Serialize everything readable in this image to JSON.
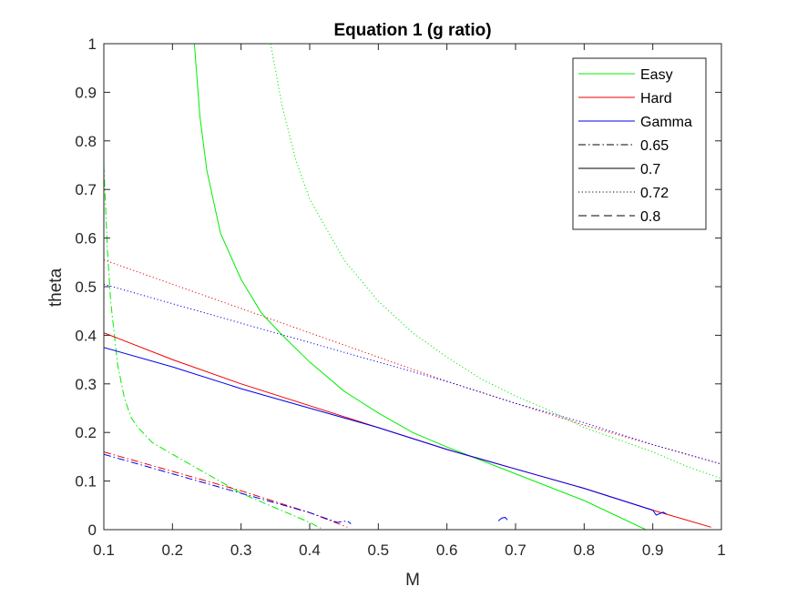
{
  "chart_data": {
    "type": "line",
    "title": "Equation 1 (g ratio)",
    "xlabel": "M",
    "ylabel": "theta",
    "xlim": [
      0.1,
      1
    ],
    "ylim": [
      0,
      1
    ],
    "xticks": [
      "0.1",
      "0.2",
      "0.3",
      "0.4",
      "0.5",
      "0.6",
      "0.7",
      "0.8",
      "0.9",
      "1"
    ],
    "yticks": [
      "0",
      "0.1",
      "0.2",
      "0.3",
      "0.4",
      "0.5",
      "0.6",
      "0.7",
      "0.8",
      "0.9",
      "1"
    ],
    "grid": false,
    "legend_position": "top-right",
    "legend": [
      {
        "label": "Easy",
        "color": "#00ee00",
        "style": "solid"
      },
      {
        "label": "Hard",
        "color": "#ee0000",
        "style": "solid"
      },
      {
        "label": "Gamma",
        "color": "#0000ee",
        "style": "solid"
      },
      {
        "label": "0.65",
        "color": "#000000",
        "style": "dashdot"
      },
      {
        "label": "0.7",
        "color": "#000000",
        "style": "solid"
      },
      {
        "label": "0.72",
        "color": "#000000",
        "style": "dotted"
      },
      {
        "label": "0.8",
        "color": "#000000",
        "style": "dashed"
      }
    ],
    "series": [
      {
        "group": "Easy",
        "level": "0.65",
        "color": "#00ee00",
        "style": "dashdot",
        "x": [
          0.1,
          0.105,
          0.11,
          0.12,
          0.13,
          0.14,
          0.15,
          0.17,
          0.2,
          0.25,
          0.3,
          0.35,
          0.4,
          0.42
        ],
        "y": [
          0.75,
          0.58,
          0.47,
          0.34,
          0.27,
          0.23,
          0.21,
          0.18,
          0.155,
          0.115,
          0.075,
          0.045,
          0.015,
          0.0
        ]
      },
      {
        "group": "Easy",
        "level": "0.7",
        "color": "#00ee00",
        "style": "solid",
        "x": [
          0.232,
          0.24,
          0.25,
          0.27,
          0.3,
          0.33,
          0.36,
          0.4,
          0.45,
          0.5,
          0.55,
          0.6,
          0.7,
          0.8,
          0.89
        ],
        "y": [
          1.0,
          0.85,
          0.74,
          0.61,
          0.515,
          0.445,
          0.4,
          0.345,
          0.285,
          0.24,
          0.2,
          0.17,
          0.115,
          0.06,
          0.0
        ]
      },
      {
        "group": "Easy",
        "level": "0.72",
        "color": "#00ee00",
        "style": "dotted",
        "x": [
          0.343,
          0.36,
          0.38,
          0.4,
          0.45,
          0.5,
          0.55,
          0.6,
          0.65,
          0.7,
          0.75,
          0.8,
          0.85,
          0.9,
          0.95,
          1.0
        ],
        "y": [
          1.0,
          0.87,
          0.76,
          0.68,
          0.555,
          0.47,
          0.405,
          0.355,
          0.31,
          0.275,
          0.245,
          0.21,
          0.185,
          0.16,
          0.13,
          0.105
        ]
      },
      {
        "group": "Hard",
        "level": "0.65",
        "color": "#ee0000",
        "style": "dashdot",
        "x": [
          0.1,
          0.2,
          0.3,
          0.4,
          0.455
        ],
        "y": [
          0.16,
          0.12,
          0.08,
          0.035,
          0.005
        ]
      },
      {
        "group": "Hard",
        "level": "0.7",
        "color": "#ee0000",
        "style": "solid",
        "x": [
          0.1,
          0.2,
          0.3,
          0.4,
          0.5,
          0.6,
          0.7,
          0.8,
          0.9,
          0.985
        ],
        "y": [
          0.405,
          0.35,
          0.3,
          0.255,
          0.21,
          0.165,
          0.125,
          0.085,
          0.04,
          0.005
        ]
      },
      {
        "group": "Hard",
        "level": "0.72",
        "color": "#ee0000",
        "style": "dotted",
        "x": [
          0.1,
          0.2,
          0.3,
          0.4,
          0.5,
          0.6,
          0.7,
          0.8,
          0.9,
          1.0
        ],
        "y": [
          0.555,
          0.505,
          0.455,
          0.405,
          0.355,
          0.305,
          0.26,
          0.215,
          0.175,
          0.135
        ]
      },
      {
        "group": "Gamma",
        "level": "0.65",
        "color": "#0000ee",
        "style": "dashdot",
        "x": [
          0.1,
          0.2,
          0.3,
          0.4,
          0.44,
          0.455,
          0.46
        ],
        "y": [
          0.155,
          0.115,
          0.075,
          0.035,
          0.015,
          0.018,
          0.012
        ]
      },
      {
        "group": "Gamma",
        "level": "0.7",
        "color": "#0000ee",
        "style": "solid",
        "x": [
          0.1,
          0.2,
          0.3,
          0.4,
          0.5,
          0.6,
          0.7,
          0.8,
          0.9,
          0.905,
          0.915,
          0.92
        ],
        "y": [
          0.375,
          0.335,
          0.29,
          0.25,
          0.21,
          0.165,
          0.125,
          0.085,
          0.04,
          0.03,
          0.036,
          0.032
        ]
      },
      {
        "group": "Gamma",
        "level": "0.72",
        "color": "#0000ee",
        "style": "dotted",
        "x": [
          0.1,
          0.2,
          0.3,
          0.4,
          0.5,
          0.6,
          0.7,
          0.8,
          0.9,
          1.0
        ],
        "y": [
          0.505,
          0.465,
          0.425,
          0.385,
          0.345,
          0.305,
          0.26,
          0.22,
          0.175,
          0.135
        ]
      },
      {
        "group": "Gamma",
        "level": "0.7",
        "color": "#0000ee",
        "style": "solid",
        "x": [
          0.675,
          0.68,
          0.685,
          0.688
        ],
        "y": [
          0.018,
          0.024,
          0.025,
          0.02
        ]
      }
    ]
  }
}
